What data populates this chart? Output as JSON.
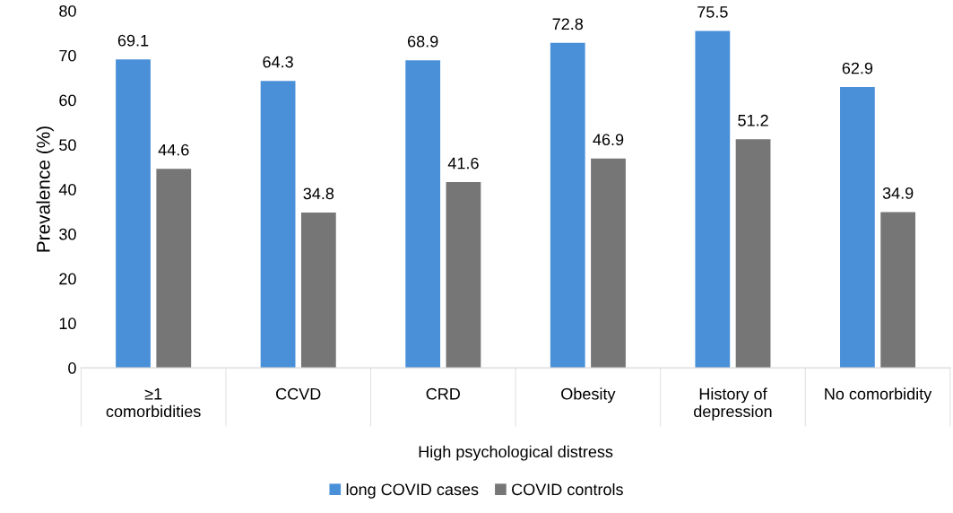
{
  "chart_data": {
    "type": "bar",
    "categories": [
      "≥1\ncomorbidities",
      "CCVD",
      "CRD",
      "Obesity",
      "History of\ndepression",
      "No comorbidity"
    ],
    "xlabel": "High psychological distress",
    "ylabel": "Prevalence (%)",
    "series": [
      {
        "name": "long COVID cases",
        "color": "#4a90d9",
        "values": [
          69.1,
          64.3,
          68.9,
          72.8,
          75.5,
          62.9
        ]
      },
      {
        "name": "COVID controls",
        "color": "#767676",
        "values": [
          44.6,
          34.8,
          41.6,
          46.9,
          51.2,
          34.9
        ]
      }
    ],
    "ylim": [
      0,
      80
    ],
    "yticks": [
      0,
      10,
      20,
      30,
      40,
      50,
      60,
      70,
      80
    ],
    "data_labels": true,
    "grid": false,
    "legend": "bottom"
  }
}
